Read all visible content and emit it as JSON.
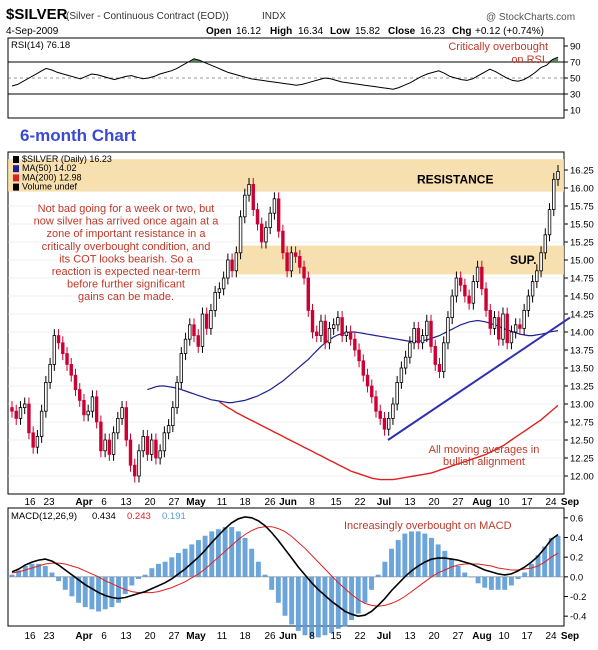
{
  "header": {
    "symbol": "$SILVER",
    "description": "(Silver - Continuous Contract (EOD))",
    "exchange": "INDX",
    "source": "@ StockCharts.com",
    "date": "4-Sep-2009",
    "quote": {
      "open_label": "Open",
      "open": "16.12",
      "high_label": "High",
      "high": "16.34",
      "low_label": "Low",
      "low": "15.82",
      "close_label": "Close",
      "close": "16.23",
      "chg_label": "Chg",
      "chg": "+0.12 (+0.74%)"
    }
  },
  "x_axis": {
    "labels": [
      "16",
      "23",
      "Apr",
      "6",
      "13",
      "20",
      "27",
      "May",
      "11",
      "18",
      "26",
      "Jun",
      "8",
      "15",
      "22",
      "Jul",
      "13",
      "20",
      "27",
      "Aug",
      "10",
      "17",
      "24",
      "Sep"
    ],
    "bold": [
      "Apr",
      "May",
      "Jun",
      "Jul",
      "Aug",
      "Sep"
    ]
  },
  "chart_data": [
    {
      "type": "line",
      "panel": "RSI",
      "legend": "RSI(14) 76.18",
      "series": [
        {
          "values": [
            40,
            42,
            46,
            50,
            54,
            58,
            62,
            60,
            57,
            55,
            53,
            51,
            49,
            52,
            55,
            54,
            52,
            50,
            48,
            50,
            52,
            53,
            51,
            49,
            50,
            52,
            55,
            57,
            59,
            62,
            66,
            70,
            74,
            72,
            69,
            66,
            63,
            60,
            57,
            55,
            53,
            51,
            49,
            48,
            47,
            46,
            45,
            44,
            43,
            42,
            41,
            42,
            44,
            46,
            48,
            50,
            49,
            47,
            45,
            44,
            43,
            42,
            41,
            40,
            39,
            38,
            37,
            36,
            38,
            41,
            44,
            48,
            52,
            55,
            57,
            59,
            56,
            52,
            50,
            48,
            47,
            49,
            53,
            57,
            61,
            58,
            54,
            50,
            47,
            46,
            48,
            52,
            57,
            63,
            66,
            73,
            76
          ]
        }
      ],
      "yticks": [
        90,
        70,
        50,
        30,
        10
      ],
      "ylim": [
        0,
        100
      ],
      "guides": [
        70,
        30
      ],
      "annotation": "Critically overbought on RSI."
    },
    {
      "type": "candlestick",
      "panel": "price",
      "title": "6-month Chart",
      "legend": [
        "$SILVER (Daily) 16.23",
        "MA(50) 14.02",
        "MA(200) 12.98",
        "Volume undef"
      ],
      "close": [
        12.9,
        12.8,
        12.95,
        13.0,
        12.6,
        12.4,
        12.55,
        12.9,
        13.3,
        13.55,
        13.95,
        13.85,
        13.7,
        13.55,
        13.4,
        13.2,
        13.05,
        12.85,
        12.9,
        13.1,
        12.75,
        12.35,
        12.5,
        12.3,
        12.6,
        12.8,
        12.95,
        12.5,
        12.15,
        12.0,
        12.35,
        12.55,
        12.3,
        12.5,
        12.25,
        12.35,
        12.6,
        12.7,
        12.95,
        13.3,
        13.7,
        13.9,
        14.1,
        13.95,
        13.8,
        14.25,
        14.05,
        14.3,
        14.55,
        14.6,
        14.75,
        15.0,
        14.85,
        15.1,
        15.6,
        15.9,
        16.05,
        15.7,
        15.5,
        15.25,
        15.45,
        15.65,
        15.85,
        15.4,
        15.1,
        14.85,
        15.1,
        15.05,
        14.9,
        14.75,
        14.3,
        14.0,
        13.95,
        14.15,
        13.85,
        14.05,
        14.1,
        14.2,
        13.95,
        14.0,
        13.9,
        13.75,
        13.6,
        13.4,
        13.25,
        13.1,
        12.9,
        12.8,
        12.65,
        12.8,
        13.0,
        13.3,
        13.5,
        13.65,
        13.85,
        14.05,
        13.85,
        13.95,
        14.15,
        13.8,
        13.55,
        13.45,
        13.85,
        14.2,
        14.5,
        14.75,
        14.65,
        14.5,
        14.4,
        14.7,
        14.9,
        14.6,
        14.3,
        14.05,
        14.2,
        13.9,
        14.25,
        13.85,
        14.0,
        14.1,
        14.05,
        14.3,
        14.5,
        14.7,
        14.85,
        15.1,
        15.35,
        15.7,
        16.12,
        16.23
      ],
      "ma50": [
        13.2,
        13.22,
        13.24,
        13.25,
        13.25,
        13.24,
        13.23,
        13.22,
        13.2,
        13.18,
        13.16,
        13.14,
        13.12,
        13.1,
        13.08,
        13.06,
        13.05,
        13.04,
        13.03,
        13.02,
        13.02,
        13.03,
        13.04,
        13.05,
        13.07,
        13.09,
        13.11,
        13.14,
        13.17,
        13.2,
        13.24,
        13.28,
        13.32,
        13.37,
        13.42,
        13.47,
        13.52,
        13.57,
        13.62,
        13.68,
        13.74,
        13.8,
        13.85,
        13.89,
        13.93,
        13.96,
        13.98,
        13.99,
        14.0,
        14.0,
        13.99,
        13.98,
        13.97,
        13.96,
        13.95,
        13.94,
        13.93,
        13.92,
        13.91,
        13.9,
        13.89,
        13.88,
        13.87,
        13.87,
        13.87,
        13.88,
        13.89,
        13.91,
        13.93,
        13.95,
        13.98,
        14.01,
        14.04,
        14.07,
        14.1,
        14.12,
        14.14,
        14.15,
        14.16,
        14.15,
        14.14,
        14.12,
        14.1,
        14.08,
        14.05,
        14.03,
        14.01,
        13.99,
        13.97,
        13.96,
        13.95,
        13.95,
        13.96,
        13.97,
        13.98,
        14.0,
        14.01,
        14.02
      ],
      "ma200": [
        13.03,
        12.99,
        12.95,
        12.92,
        12.88,
        12.85,
        12.82,
        12.79,
        12.76,
        12.73,
        12.7,
        12.67,
        12.64,
        12.61,
        12.58,
        12.55,
        12.52,
        12.49,
        12.46,
        12.43,
        12.4,
        12.37,
        12.34,
        12.31,
        12.28,
        12.25,
        12.22,
        12.19,
        12.16,
        12.13,
        12.1,
        12.07,
        12.05,
        12.03,
        12.01,
        11.99,
        11.97,
        11.96,
        11.95,
        11.95,
        11.95,
        11.95,
        11.96,
        11.97,
        11.98,
        11.99,
        12.0,
        12.01,
        12.02,
        12.03,
        12.04,
        12.06,
        12.08,
        12.1,
        12.12,
        12.14,
        12.16,
        12.18,
        12.2,
        12.22,
        12.24,
        12.26,
        12.28,
        12.3,
        12.33,
        12.36,
        12.39,
        12.42,
        12.46,
        12.5,
        12.54,
        12.58,
        12.62,
        12.66,
        12.7,
        12.74,
        12.78,
        12.83,
        12.88,
        12.93,
        12.98
      ],
      "yticks": [
        16.25,
        16.0,
        15.75,
        15.5,
        15.25,
        15.0,
        14.75,
        14.5,
        14.25,
        14.0,
        13.75,
        13.5,
        13.25,
        13.0,
        12.75,
        12.5,
        12.25,
        12.0
      ],
      "ylim": [
        11.75,
        16.5
      ],
      "zones": [
        {
          "label": "RESISTANCE",
          "from": 15.95,
          "to": 16.4
        },
        {
          "label": "SUP.",
          "from": 14.8,
          "to": 15.2
        }
      ],
      "trendline": {
        "from": [
          12.5
        ],
        "to": [
          14.2
        ]
      },
      "annotations": [
        "Not bad going for a week or two, but now silver has arrived once again at a zone of important resistance in a critically overbought condition, and its COT looks bearish. So a reaction is expected near-term before further significant gains can be made.",
        "All moving averages in bullish alignment"
      ]
    },
    {
      "type": "line",
      "panel": "MACD",
      "legend": {
        "label": "MACD(12,26,9)",
        "macd": "0.434",
        "signal": "0.243",
        "hist": "0.191"
      },
      "series": [
        {
          "values": [
            0.05,
            0.08,
            0.12,
            0.15,
            0.17,
            0.18,
            0.16,
            0.12,
            0.07,
            0.02,
            -0.03,
            -0.08,
            -0.12,
            -0.16,
            -0.19,
            -0.21,
            -0.22,
            -0.21,
            -0.19,
            -0.17,
            -0.15,
            -0.12,
            -0.09,
            -0.06,
            -0.02,
            0.03,
            0.08,
            0.14,
            0.2,
            0.27,
            0.35,
            0.42,
            0.49,
            0.55,
            0.59,
            0.61,
            0.6,
            0.57,
            0.52,
            0.45,
            0.37,
            0.28,
            0.19,
            0.1,
            0.02,
            -0.06,
            -0.13,
            -0.19,
            -0.25,
            -0.3,
            -0.35,
            -0.38,
            -0.4,
            -0.39,
            -0.35,
            -0.29,
            -0.22,
            -0.14,
            -0.07,
            0.0,
            0.06,
            0.11,
            0.15,
            0.18,
            0.19,
            0.19,
            0.18,
            0.17,
            0.15,
            0.13,
            0.1,
            0.07,
            0.05,
            0.03,
            0.02,
            0.03,
            0.06,
            0.1,
            0.15,
            0.21,
            0.29,
            0.38,
            0.43
          ]
        },
        {
          "values": [
            0.04,
            0.05,
            0.07,
            0.09,
            0.11,
            0.13,
            0.14,
            0.14,
            0.13,
            0.11,
            0.09,
            0.06,
            0.03,
            0.0,
            -0.04,
            -0.07,
            -0.1,
            -0.13,
            -0.15,
            -0.16,
            -0.16,
            -0.16,
            -0.15,
            -0.13,
            -0.11,
            -0.08,
            -0.05,
            -0.01,
            0.03,
            0.08,
            0.14,
            0.2,
            0.26,
            0.32,
            0.38,
            0.43,
            0.47,
            0.5,
            0.51,
            0.51,
            0.49,
            0.46,
            0.41,
            0.35,
            0.29,
            0.22,
            0.15,
            0.08,
            0.01,
            -0.06,
            -0.12,
            -0.18,
            -0.23,
            -0.27,
            -0.29,
            -0.3,
            -0.29,
            -0.27,
            -0.24,
            -0.2,
            -0.15,
            -0.1,
            -0.05,
            0.0,
            0.04,
            0.07,
            0.1,
            0.12,
            0.13,
            0.13,
            0.13,
            0.12,
            0.11,
            0.09,
            0.08,
            0.07,
            0.07,
            0.08,
            0.09,
            0.11,
            0.15,
            0.2,
            0.24
          ]
        }
      ],
      "yticks": [
        0.6,
        0.4,
        0.2,
        0.0,
        -0.2,
        -0.4
      ],
      "ylim": [
        -0.5,
        0.7
      ],
      "annotation": "Increasingly overbought on MACD"
    }
  ],
  "colors": {
    "price_up": "#000000",
    "price_down": "#cc0033",
    "ma50": "#1f1f8f",
    "ma200": "#e02020",
    "zone_fill": "#f7d9a0",
    "rsi_fill": "#3a7a3a",
    "macd_hist": "#5b9bd5",
    "trendline": "#3030b0",
    "annotation": "#c0392b",
    "title": "#3b4bd1"
  }
}
